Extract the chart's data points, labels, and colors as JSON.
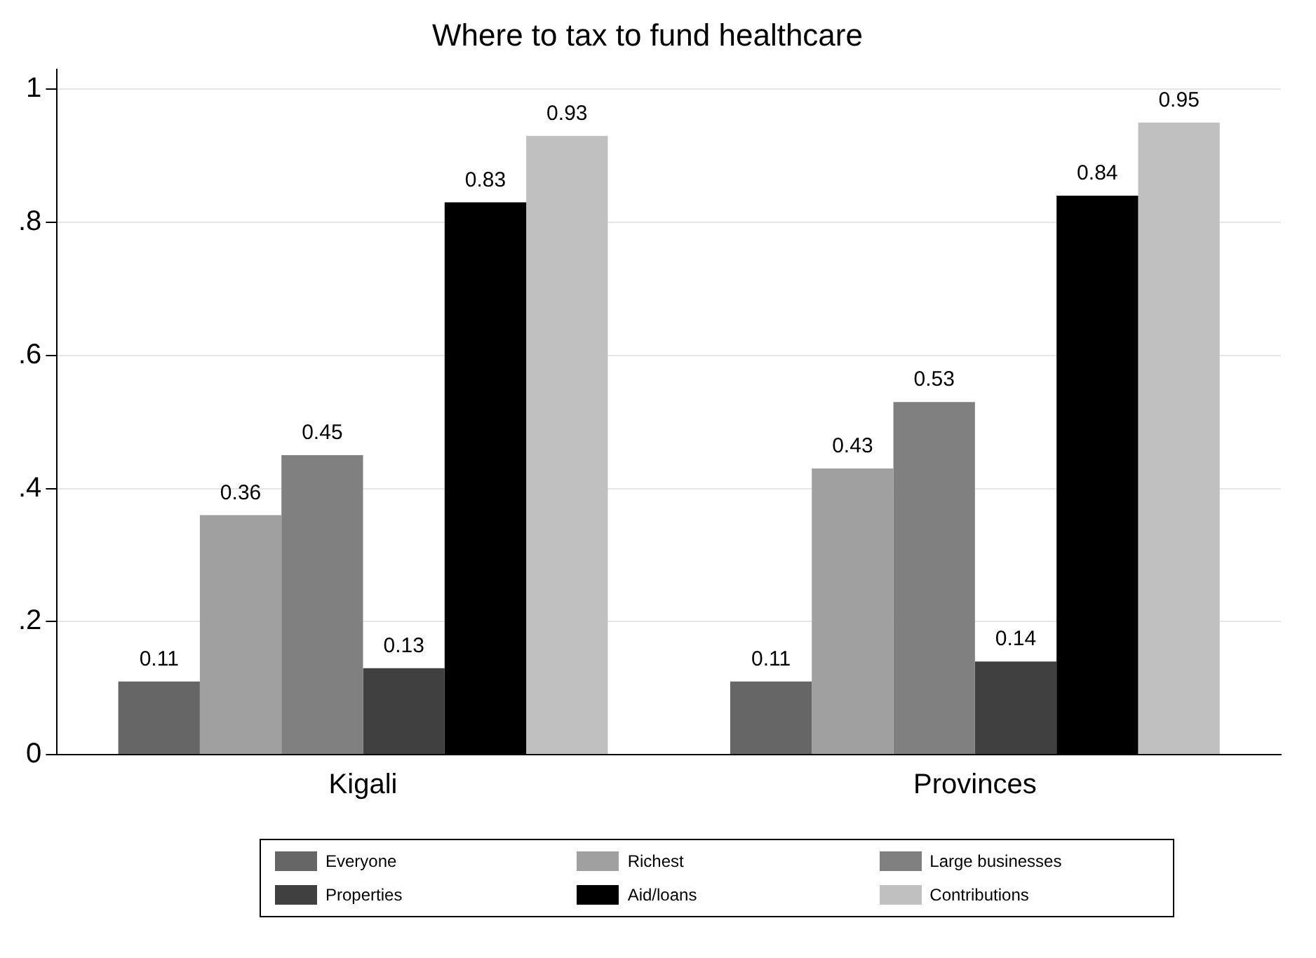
{
  "chart_data": {
    "type": "bar",
    "title": "Where to tax to fund healthcare",
    "categories": [
      "Kigali",
      "Provinces"
    ],
    "series": [
      {
        "name": "Everyone",
        "color": "#666666",
        "values": [
          0.11,
          0.11
        ]
      },
      {
        "name": "Richest",
        "color": "#a0a0a0",
        "values": [
          0.36,
          0.43
        ]
      },
      {
        "name": "Large businesses",
        "color": "#808080",
        "values": [
          0.45,
          0.53
        ]
      },
      {
        "name": "Properties",
        "color": "#404040",
        "values": [
          0.13,
          0.14
        ]
      },
      {
        "name": "Aid/loans",
        "color": "#000000",
        "values": [
          0.83,
          0.84
        ]
      },
      {
        "name": "Contributions",
        "color": "#c0c0c0",
        "values": [
          0.93,
          0.95
        ]
      }
    ],
    "ylim": [
      0,
      1.03
    ],
    "yticks": [
      0,
      {
        "value": 0.2,
        "label": ".2"
      },
      {
        "value": 0.4,
        "label": ".4"
      },
      {
        "value": 0.6,
        "label": ".6"
      },
      {
        "value": 0.8,
        "label": ".8"
      },
      1
    ],
    "grid": "y",
    "legend": "bottom",
    "data_labels": true
  }
}
